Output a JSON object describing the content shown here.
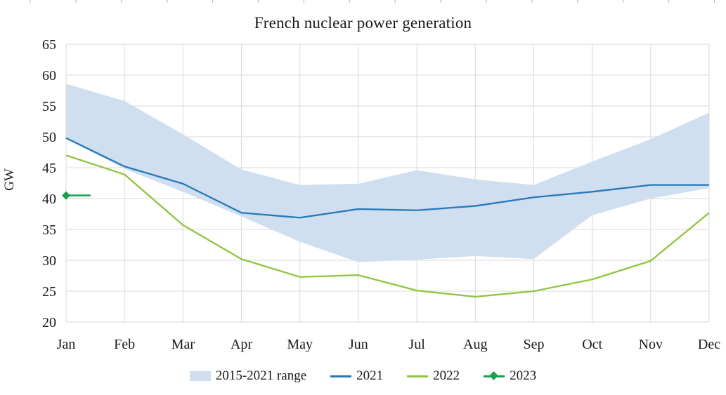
{
  "title": "French nuclear power generation",
  "chart_data": {
    "type": "line",
    "title": "French nuclear power generation",
    "ylabel": "GW",
    "ylim": [
      20,
      65
    ],
    "ytick_step": 5,
    "grid": true,
    "legend_position": "bottom",
    "categories": [
      "Jan",
      "Feb",
      "Mar",
      "Apr",
      "May",
      "Jun",
      "Jul",
      "Aug",
      "Sep",
      "Oct",
      "Nov",
      "Dec"
    ],
    "series": [
      {
        "name": "2015-2021 range",
        "kind": "band",
        "color": "#cfdff0",
        "upper": [
          58.6,
          55.8,
          50.4,
          44.7,
          42.2,
          42.4,
          44.6,
          43.1,
          42.2,
          46.0,
          49.6,
          53.9
        ],
        "lower": [
          49.7,
          44.8,
          41.1,
          37.1,
          33.0,
          29.7,
          30.1,
          30.7,
          30.2,
          37.3,
          40.0,
          41.7
        ]
      },
      {
        "name": "2021",
        "kind": "line",
        "color": "#2579b9",
        "values": [
          49.8,
          45.2,
          42.4,
          37.7,
          36.9,
          38.3,
          38.1,
          38.8,
          40.2,
          41.1,
          42.2,
          42.2
        ]
      },
      {
        "name": "2022",
        "kind": "line",
        "color": "#90c53e",
        "values": [
          47.0,
          43.9,
          35.7,
          30.2,
          27.3,
          27.6,
          25.1,
          24.1,
          25.0,
          26.9,
          29.9,
          37.7
        ]
      },
      {
        "name": "2023",
        "kind": "line-marker",
        "color": "#19a24b",
        "marker": "diamond",
        "x_months": [
          0,
          0.42
        ],
        "values": [
          40.5,
          40.5
        ]
      }
    ]
  },
  "colors": {
    "grid": "#d9d9d9",
    "top_ticks": "#bfbfbf",
    "text": "#1a1a1a"
  }
}
